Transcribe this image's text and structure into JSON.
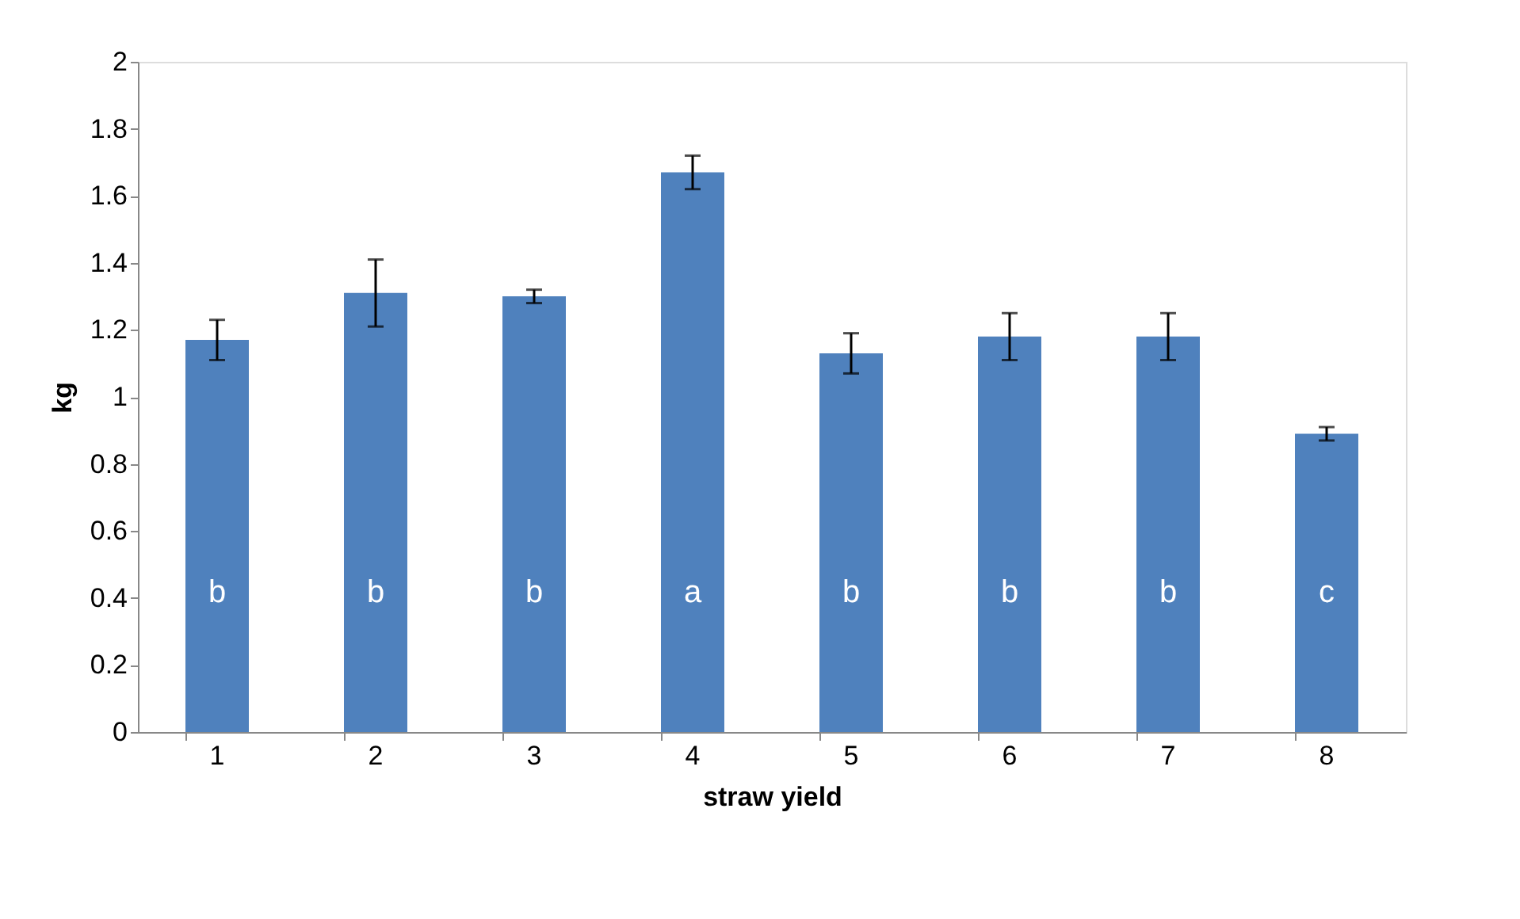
{
  "chart_data": {
    "type": "bar",
    "xlabel": "straw yield",
    "ylabel": "kg",
    "categories": [
      "1",
      "2",
      "3",
      "4",
      "5",
      "6",
      "7",
      "8"
    ],
    "values": [
      1.17,
      1.31,
      1.3,
      1.67,
      1.13,
      1.18,
      1.18,
      0.89
    ],
    "errors": [
      0.06,
      0.1,
      0.02,
      0.05,
      0.06,
      0.07,
      0.07,
      0.02
    ],
    "color": "#4f81bd",
    "ylim": [
      0,
      2
    ],
    "yticks": [
      0,
      0.2,
      0.4,
      0.6,
      0.8,
      1,
      1.2,
      1.4,
      1.6,
      1.8,
      2
    ],
    "grid": false,
    "annotations": [
      "b",
      "b",
      "b",
      "a",
      "b",
      "b",
      "b",
      "c"
    ]
  }
}
